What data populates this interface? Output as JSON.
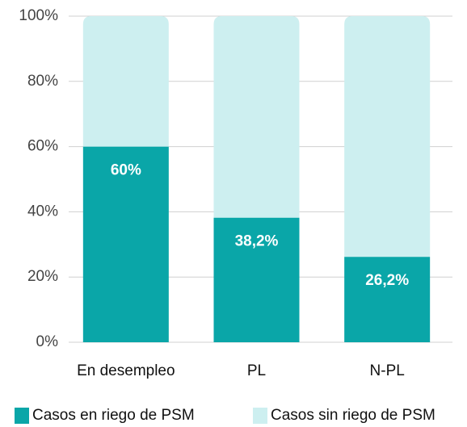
{
  "chart_data": {
    "type": "stacked_bar",
    "categories": [
      "En desempleo",
      "PL",
      "N-PL"
    ],
    "series": [
      {
        "name": "Casos en riego de PSM",
        "color": "#0aa6a8",
        "values": [
          60,
          38.2,
          26.2
        ],
        "value_labels": [
          "60%",
          "38,2%",
          "26,2%"
        ]
      },
      {
        "name": "Casos sin riego de PSM",
        "color": "#cdeff0",
        "values": [
          40,
          61.8,
          73.8
        ]
      }
    ],
    "ylim": [
      0,
      100
    ],
    "yticks": [
      {
        "value": 0,
        "label": "0%"
      },
      {
        "value": 20,
        "label": "20%"
      },
      {
        "value": 40,
        "label": "40%"
      },
      {
        "value": 60,
        "label": "60%"
      },
      {
        "value": 80,
        "label": "80%"
      },
      {
        "value": 100,
        "label": "100%"
      }
    ],
    "grid": true,
    "legend": "bottom"
  }
}
